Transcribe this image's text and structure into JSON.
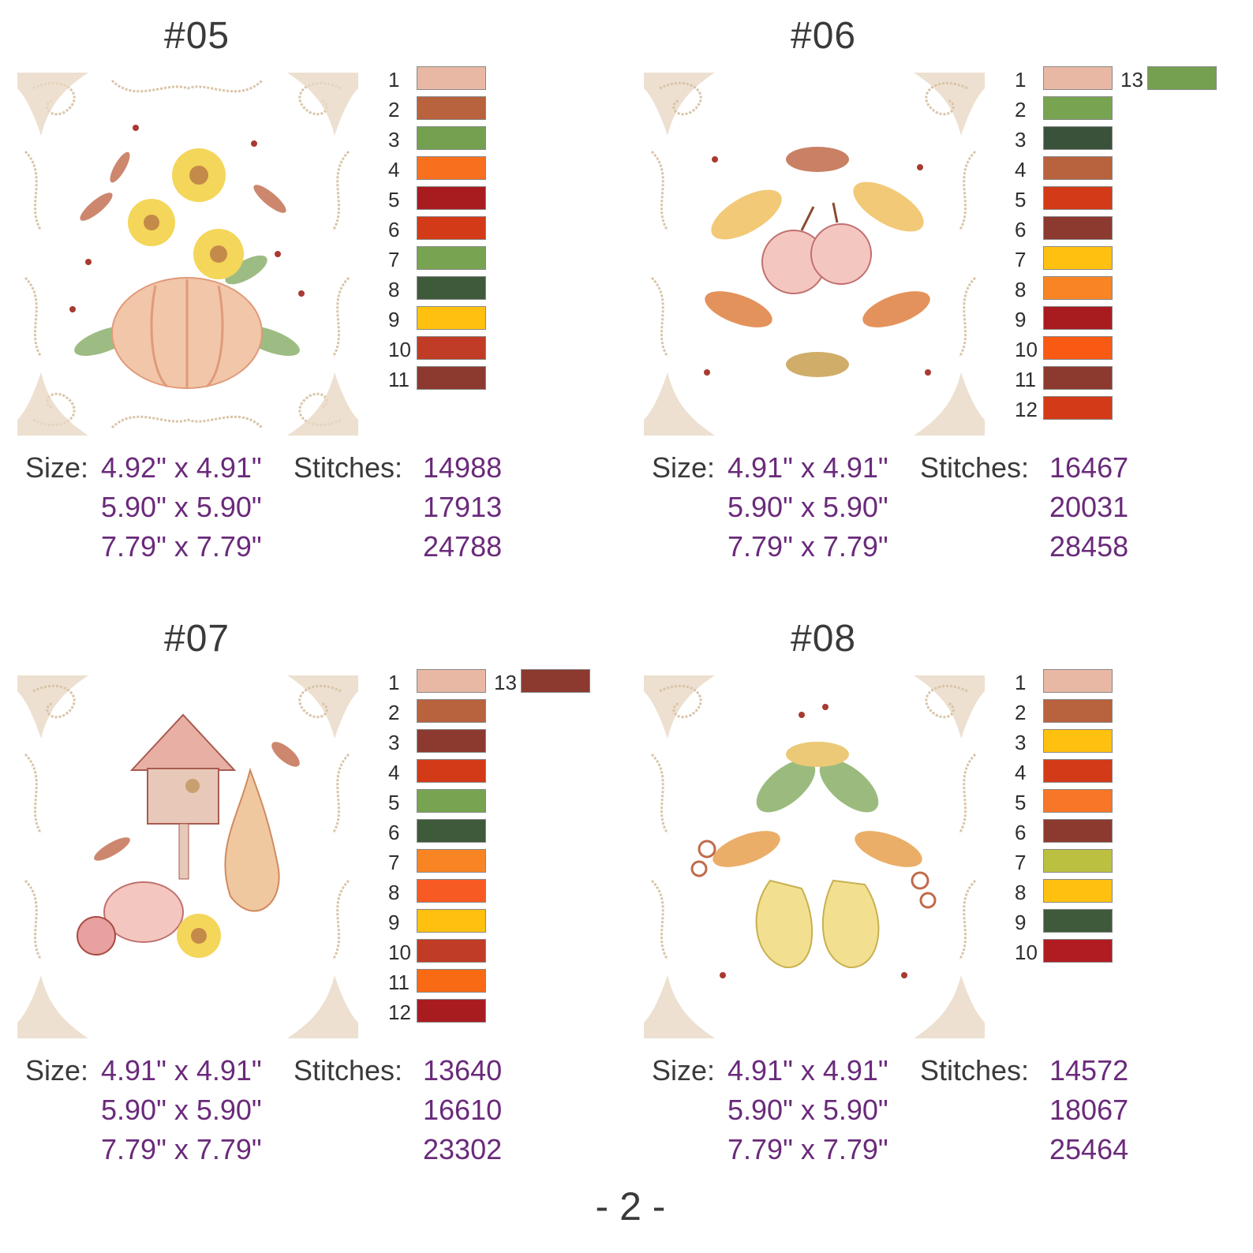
{
  "page_number": "- 2 -",
  "labels": {
    "size": "Size:",
    "stitches": "Stitches:"
  },
  "designs": [
    {
      "title": "#05",
      "sizes": [
        "4.92\" x 4.91\"",
        "5.90\" x 5.90\"",
        "7.79\" x 7.79\""
      ],
      "stitches": [
        "14988",
        "17913",
        "24788"
      ],
      "colors": [
        {
          "num": "1",
          "hex": "#e8b8a4"
        },
        {
          "num": "2",
          "hex": "#b8623e"
        },
        {
          "num": "3",
          "hex": "#74a050"
        },
        {
          "num": "4",
          "hex": "#f8701e"
        },
        {
          "num": "5",
          "hex": "#a81c20"
        },
        {
          "num": "6",
          "hex": "#d23a18"
        },
        {
          "num": "7",
          "hex": "#78a452"
        },
        {
          "num": "8",
          "hex": "#3e5a3a"
        },
        {
          "num": "9",
          "hex": "#ffc010"
        },
        {
          "num": "10",
          "hex": "#c03c26"
        },
        {
          "num": "11",
          "hex": "#8c3a30"
        }
      ],
      "extra_color": null
    },
    {
      "title": "#06",
      "sizes": [
        "4.91\" x 4.91\"",
        "5.90\" x 5.90\"",
        "7.79\" x 7.79\""
      ],
      "stitches": [
        "16467",
        "20031",
        "28458"
      ],
      "colors": [
        {
          "num": "1",
          "hex": "#e8b8a4"
        },
        {
          "num": "2",
          "hex": "#78a452"
        },
        {
          "num": "3",
          "hex": "#3a523a"
        },
        {
          "num": "4",
          "hex": "#b8623e"
        },
        {
          "num": "5",
          "hex": "#d23a18"
        },
        {
          "num": "6",
          "hex": "#8c3a30"
        },
        {
          "num": "7",
          "hex": "#ffc010"
        },
        {
          "num": "8",
          "hex": "#f88424"
        },
        {
          "num": "9",
          "hex": "#a81c20"
        },
        {
          "num": "10",
          "hex": "#f85a14"
        },
        {
          "num": "11",
          "hex": "#8c3a30"
        },
        {
          "num": "12",
          "hex": "#d23a18"
        }
      ],
      "extra_color": {
        "num": "13",
        "hex": "#74a050"
      }
    },
    {
      "title": "#07",
      "sizes": [
        "4.91\" x 4.91\"",
        "5.90\" x 5.90\"",
        "7.79\" x 7.79\""
      ],
      "stitches": [
        "13640",
        "16610",
        "23302"
      ],
      "colors": [
        {
          "num": "1",
          "hex": "#e8b8a4"
        },
        {
          "num": "2",
          "hex": "#b8623e"
        },
        {
          "num": "3",
          "hex": "#8c3a30"
        },
        {
          "num": "4",
          "hex": "#d23a18"
        },
        {
          "num": "5",
          "hex": "#78a452"
        },
        {
          "num": "6",
          "hex": "#3e5a3a"
        },
        {
          "num": "7",
          "hex": "#f88424"
        },
        {
          "num": "8",
          "hex": "#f85a24"
        },
        {
          "num": "9",
          "hex": "#ffc010"
        },
        {
          "num": "10",
          "hex": "#c03c26"
        },
        {
          "num": "11",
          "hex": "#f86a14"
        },
        {
          "num": "12",
          "hex": "#a81c20"
        }
      ],
      "extra_color": {
        "num": "13",
        "hex": "#8c3a30"
      }
    },
    {
      "title": "#08",
      "sizes": [
        "4.91\" x 4.91\"",
        "5.90\" x 5.90\"",
        "7.79\" x 7.79\""
      ],
      "stitches": [
        "14572",
        "18067",
        "25464"
      ],
      "colors": [
        {
          "num": "1",
          "hex": "#e8b8a4"
        },
        {
          "num": "2",
          "hex": "#b8623e"
        },
        {
          "num": "3",
          "hex": "#ffc010"
        },
        {
          "num": "4",
          "hex": "#d23a18"
        },
        {
          "num": "5",
          "hex": "#f87628"
        },
        {
          "num": "6",
          "hex": "#8c3a30"
        },
        {
          "num": "7",
          "hex": "#bcc040"
        },
        {
          "num": "8",
          "hex": "#ffc010"
        },
        {
          "num": "9",
          "hex": "#3e5a3a"
        },
        {
          "num": "10",
          "hex": "#b01c20"
        }
      ],
      "extra_color": null
    }
  ]
}
